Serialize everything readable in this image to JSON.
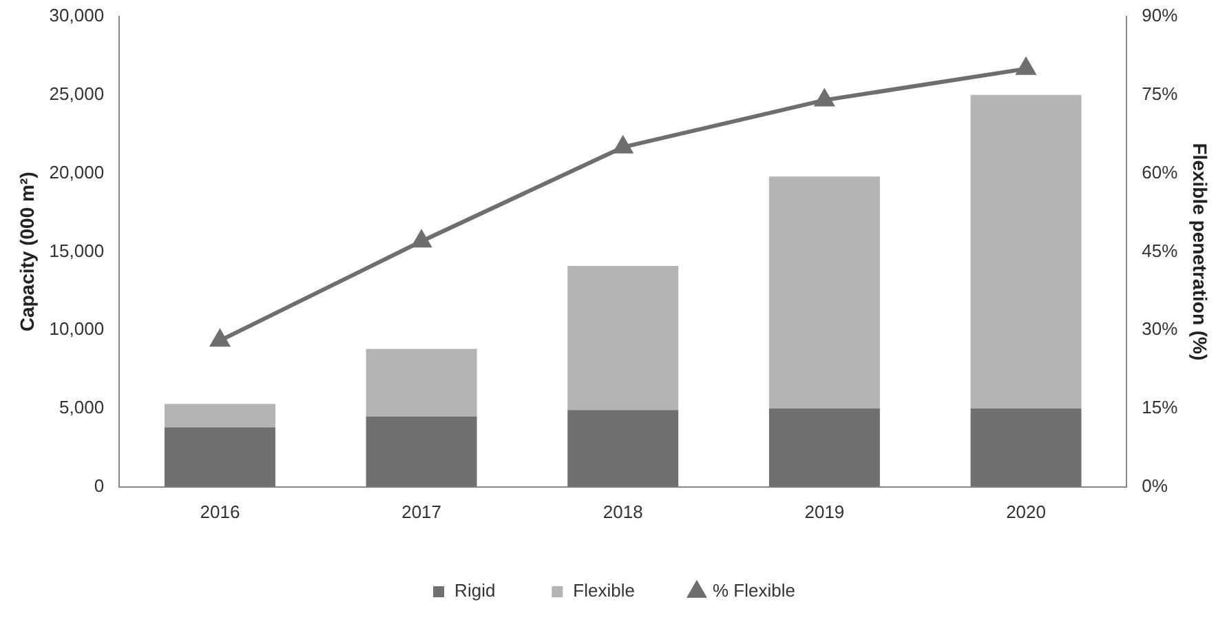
{
  "chart_data": {
    "type": "bar",
    "stacked": true,
    "categories": [
      "2016",
      "2017",
      "2018",
      "2019",
      "2020"
    ],
    "series": [
      {
        "name": "Rigid",
        "color": "#707070",
        "values": [
          3800,
          4500,
          4900,
          5000,
          5000
        ]
      },
      {
        "name": "Flexible",
        "color": "#b4b4b4",
        "values": [
          1500,
          4300,
          9200,
          14800,
          20000
        ]
      },
      {
        "name": "% Flexible",
        "type": "line",
        "axis": "y2",
        "color": "#6e6e6e",
        "marker": "triangle",
        "values": [
          28,
          47,
          65,
          74,
          80
        ]
      }
    ],
    "ylabel": "Capacity (000 m²)",
    "y2label": "Flexible penetration (%)",
    "ylim": [
      0,
      30000
    ],
    "yticks": [
      {
        "value": 0,
        "label": "0"
      },
      {
        "value": 5000,
        "label": "5,000"
      },
      {
        "value": 10000,
        "label": "10,000"
      },
      {
        "value": 15000,
        "label": "15,000"
      },
      {
        "value": 20000,
        "label": "20,000"
      },
      {
        "value": 25000,
        "label": "25,000"
      },
      {
        "value": 30000,
        "label": "30,000"
      }
    ],
    "y2lim": [
      0,
      90
    ],
    "y2ticks": [
      {
        "value": 0,
        "label": "0%"
      },
      {
        "value": 15,
        "label": "15%"
      },
      {
        "value": 30,
        "label": "30%"
      },
      {
        "value": 45,
        "label": "45%"
      },
      {
        "value": 60,
        "label": "60%"
      },
      {
        "value": 75,
        "label": "75%"
      },
      {
        "value": 90,
        "label": "90%"
      }
    ],
    "grid": false,
    "legend": "bottom"
  }
}
